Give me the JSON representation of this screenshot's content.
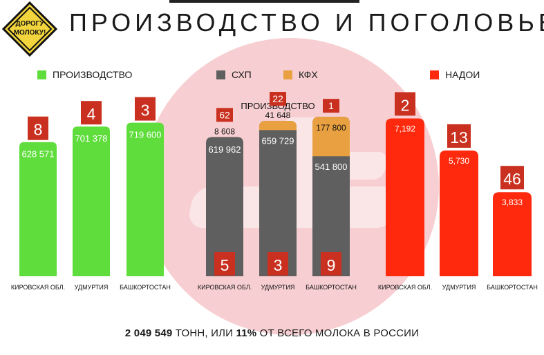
{
  "header": {
    "title": "ПРОИЗВОДСТВО И ПОГОЛОВЬЕ",
    "logo_line1": "ДОРОГУ",
    "logo_line2": "МОЛОКУ!"
  },
  "legend": {
    "production": "ПРОИЗВОДСТВО",
    "shp": "СХП",
    "kfh": "КФХ",
    "yields": "НАДОИ"
  },
  "colors": {
    "green": "#5fdd3c",
    "gray": "#5f5f5f",
    "orange": "#e9a040",
    "red": "#ff2a0d",
    "rank_box": "#c9301f",
    "watermark": "#f7c9cc"
  },
  "footer": {
    "total": "2 049 549",
    "text1": " ТОНН, ИЛИ ",
    "percent": "11%",
    "text2": " ОТ ВСЕГО МОЛОКА В РОССИИ"
  },
  "chart_data": [
    {
      "type": "bar",
      "title": "",
      "categories": [
        "КИРОВСКАЯ ОБЛ.",
        "УДМУРТИЯ",
        "БАШКОРТОСТАН"
      ],
      "values": [
        628571,
        701378,
        719600
      ],
      "value_labels": [
        "628 571",
        "701 378",
        "719 600"
      ],
      "ranks": [
        "8",
        "4",
        "3"
      ],
      "ylim": [
        0,
        1100000
      ]
    },
    {
      "type": "bar",
      "stacked": true,
      "title": "ПРОИЗВОДСТВО",
      "categories": [
        "КИРОВСКАЯ ОБЛ.",
        "УДМУРТИЯ",
        "БАШКОРТОСТАН"
      ],
      "series": [
        {
          "name": "СХП",
          "values": [
            619962,
            659729,
            541800
          ],
          "value_labels": [
            "619 962",
            "659 729",
            "541 800"
          ],
          "ranks": [
            "5",
            "3",
            "9"
          ]
        },
        {
          "name": "КФХ",
          "values": [
            8608,
            41648,
            177800
          ],
          "value_labels": [
            "8 608",
            "41 648",
            "177 800"
          ],
          "ranks": [
            "62",
            "22",
            "1"
          ]
        }
      ],
      "ylim": [
        0,
        1060000
      ]
    },
    {
      "type": "bar",
      "title": "",
      "categories": [
        "КИРОВСКАЯ ОБЛ.",
        "УДМУРТИЯ",
        "БАШКОРТОСТАН"
      ],
      "values": [
        7192,
        5730,
        3833
      ],
      "value_labels": [
        "7,192",
        "5,730",
        "3,833"
      ],
      "ranks": [
        "2",
        "13",
        "46"
      ],
      "ylim": [
        0,
        10700
      ]
    }
  ]
}
